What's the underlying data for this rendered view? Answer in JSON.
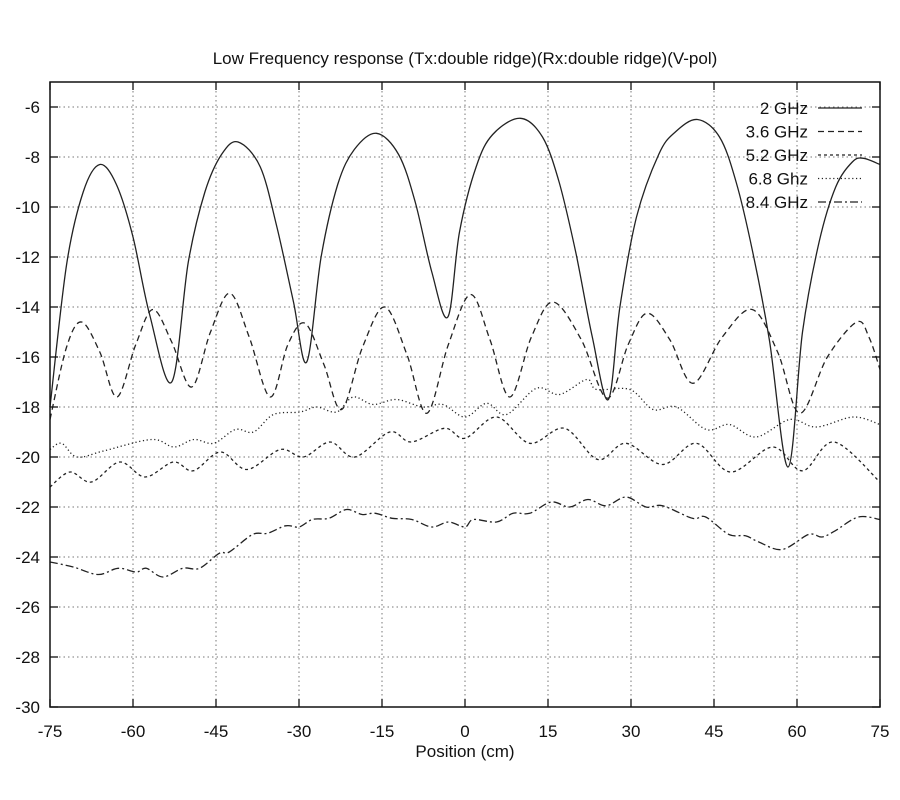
{
  "chart_data": {
    "type": "line",
    "title": "Low Frequency response (Tx:double ridge)(Rx:double ridge)(V-pol)",
    "xlabel": "Position (cm)",
    "ylabel": "",
    "xlim": [
      -75,
      75
    ],
    "ylim": [
      -30,
      -5
    ],
    "xticks": [
      -75,
      -60,
      -45,
      -30,
      -15,
      0,
      15,
      30,
      45,
      60,
      75
    ],
    "yticks": [
      -6,
      -8,
      -10,
      -12,
      -14,
      -16,
      -18,
      -20,
      -22,
      -24,
      -26,
      -28,
      -30
    ],
    "grid": true,
    "legend_position": "top-right",
    "series": [
      {
        "name": "2 GHz",
        "style": "solid",
        "x": [
          -75,
          -72,
          -69,
          -66,
          -63,
          -60,
          -57,
          -53,
          -50,
          -47,
          -44,
          -41,
          -37,
          -34,
          -31,
          -28.6,
          -26,
          -23,
          -20,
          -16,
          -12,
          -9,
          -6,
          -3.1,
          -1,
          2,
          5,
          10,
          14,
          17,
          20,
          23,
          25.9,
          28,
          31,
          35,
          38,
          42,
          46,
          49,
          52,
          55,
          58.4,
          61,
          64,
          67,
          70,
          72,
          75
        ],
        "y": [
          -18.0,
          -12.3,
          -9.4,
          -8.3,
          -9.1,
          -11.2,
          -14.3,
          -17.0,
          -12.2,
          -9.4,
          -7.9,
          -7.4,
          -8.4,
          -10.8,
          -13.8,
          -16.2,
          -12.0,
          -9.1,
          -7.7,
          -7.05,
          -7.9,
          -9.8,
          -12.6,
          -14.4,
          -11.0,
          -8.4,
          -7.1,
          -6.45,
          -7.2,
          -9.0,
          -11.8,
          -15.2,
          -17.7,
          -14.0,
          -10.4,
          -7.9,
          -7.0,
          -6.5,
          -7.2,
          -9.0,
          -11.8,
          -15.3,
          -20.4,
          -15.0,
          -11.4,
          -9.2,
          -8.2,
          -8.05,
          -8.3
        ]
      },
      {
        "name": "3.6 GHz",
        "style": "dashed",
        "x": [
          -75,
          -72,
          -69.3,
          -66,
          -62.9,
          -59.5,
          -56.4,
          -53,
          -49.4,
          -46,
          -42.5,
          -39,
          -35.2,
          -32,
          -28.9,
          -25.5,
          -22.3,
          -18.5,
          -14.5,
          -10.5,
          -6.9,
          -3,
          1,
          4.5,
          8.1,
          12,
          15.9,
          21,
          25.7,
          29.5,
          32.9,
          37,
          41.2,
          46.5,
          51.9,
          56.5,
          60.5,
          65.5,
          70.8,
          73,
          75
        ],
        "y": [
          -18.5,
          -15.6,
          -14.6,
          -15.8,
          -17.6,
          -15.5,
          -14.1,
          -15.4,
          -17.2,
          -15.0,
          -13.45,
          -15.2,
          -17.6,
          -15.5,
          -14.65,
          -16.3,
          -18.1,
          -15.6,
          -14.0,
          -15.9,
          -18.25,
          -15.5,
          -13.5,
          -15.3,
          -17.6,
          -15.2,
          -13.8,
          -15.3,
          -17.65,
          -15.5,
          -14.25,
          -15.3,
          -17.05,
          -15.2,
          -14.1,
          -15.8,
          -18.25,
          -16.0,
          -14.6,
          -15.2,
          -16.5
        ]
      },
      {
        "name": "5.2 GHz",
        "style": "short-dashed",
        "x": [
          -75,
          -71.4,
          -67.5,
          -62.4,
          -57.8,
          -52.7,
          -49.1,
          -44.2,
          -39.4,
          -33.4,
          -29.2,
          -24.4,
          -19.9,
          -13.6,
          -9.7,
          -3.7,
          0,
          5.7,
          11.7,
          18,
          24,
          29.1,
          35.7,
          41.8,
          48,
          55.6,
          61,
          66.7,
          75
        ],
        "y": [
          -21.2,
          -20.6,
          -21.0,
          -20.2,
          -20.8,
          -20.2,
          -20.55,
          -19.8,
          -20.5,
          -19.7,
          -20.0,
          -19.4,
          -20.0,
          -19.0,
          -19.4,
          -18.85,
          -19.25,
          -18.4,
          -19.45,
          -18.85,
          -20.1,
          -19.45,
          -20.3,
          -19.45,
          -20.6,
          -19.6,
          -20.55,
          -19.4,
          -21.0
        ]
      },
      {
        "name": "6.8 Ghz",
        "style": "dotted",
        "x": [
          -75,
          -72.9,
          -70.1,
          -65.2,
          -56.6,
          -52.6,
          -49,
          -45.4,
          -41.5,
          -38.2,
          -34.6,
          -29.8,
          -26.8,
          -23.2,
          -20.2,
          -16.6,
          -12.4,
          -7.6,
          -4,
          0,
          3.9,
          7.5,
          12.9,
          17.1,
          22,
          23.8,
          29.8,
          34,
          38.2,
          43.6,
          47.8,
          52.6,
          58.7,
          63.5,
          70.2,
          75
        ],
        "y": [
          -19.7,
          -19.45,
          -20.0,
          -19.75,
          -19.3,
          -19.6,
          -19.3,
          -19.45,
          -18.9,
          -19.0,
          -18.3,
          -18.2,
          -18.0,
          -18.2,
          -17.6,
          -17.9,
          -17.7,
          -18.0,
          -17.9,
          -18.4,
          -17.85,
          -18.3,
          -17.25,
          -17.5,
          -16.9,
          -17.3,
          -17.3,
          -18.1,
          -18.0,
          -18.9,
          -18.7,
          -19.2,
          -18.5,
          -18.8,
          -18.4,
          -18.7
        ]
      },
      {
        "name": "8.4 GHz",
        "style": "dash-dot",
        "x": [
          -75,
          -70.8,
          -66.3,
          -62.7,
          -59.4,
          -57.6,
          -54.6,
          -51,
          -48,
          -44.4,
          -42.6,
          -38.4,
          -35.7,
          -32.4,
          -30,
          -27.6,
          -24.6,
          -21.4,
          -18.6,
          -16.2,
          -13.2,
          -9.6,
          -6,
          -3,
          0,
          1.5,
          5.7,
          8.7,
          11.7,
          15.6,
          18.9,
          22.2,
          25.5,
          29.1,
          32.7,
          35.7,
          41.1,
          43.5,
          47.7,
          50.7,
          53.1,
          57.3,
          62.1,
          64.5,
          66.9,
          71.1,
          75
        ],
        "y": [
          -24.2,
          -24.4,
          -24.7,
          -24.45,
          -24.6,
          -24.45,
          -24.8,
          -24.45,
          -24.45,
          -23.85,
          -23.8,
          -23.1,
          -23.05,
          -22.75,
          -22.8,
          -22.5,
          -22.45,
          -22.1,
          -22.3,
          -22.25,
          -22.45,
          -22.5,
          -22.8,
          -22.6,
          -22.8,
          -22.5,
          -22.6,
          -22.25,
          -22.25,
          -21.8,
          -22.0,
          -21.7,
          -21.95,
          -21.6,
          -22.0,
          -21.95,
          -22.45,
          -22.4,
          -23.1,
          -23.15,
          -23.4,
          -23.7,
          -23.1,
          -23.2,
          -22.95,
          -22.4,
          -22.5
        ]
      }
    ]
  }
}
